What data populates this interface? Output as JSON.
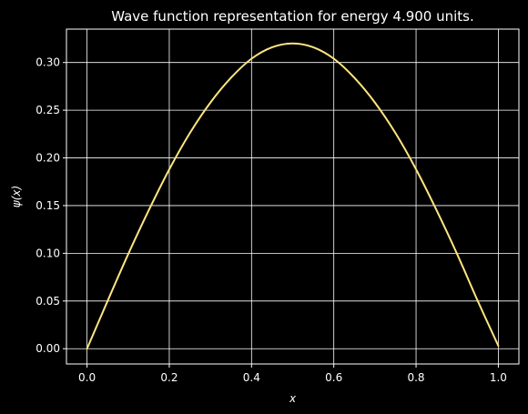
{
  "chart_data": {
    "type": "line",
    "title": "Wave function representation for energy 4.900 units.",
    "xlabel": "x",
    "ylabel": "ψ(x)",
    "xlim": [
      -0.05,
      1.05
    ],
    "ylim": [
      -0.016,
      0.335
    ],
    "xticks": [
      0.0,
      0.2,
      0.4,
      0.6,
      0.8,
      1.0
    ],
    "xtick_labels": [
      "0.0",
      "0.2",
      "0.4",
      "0.6",
      "0.8",
      "1.0"
    ],
    "yticks": [
      0.0,
      0.05,
      0.1,
      0.15,
      0.2,
      0.25,
      0.3
    ],
    "ytick_labels": [
      "0.00",
      "0.05",
      "0.10",
      "0.15",
      "0.20",
      "0.25",
      "0.30"
    ],
    "grid": true,
    "background_color": "#000000",
    "text_color": "#ffffff",
    "grid_color": "#ffffff",
    "series": [
      {
        "color": "#ffe680",
        "x": [
          0.0,
          0.05,
          0.1,
          0.15,
          0.2,
          0.25,
          0.3,
          0.35,
          0.4,
          0.45,
          0.5,
          0.55,
          0.6,
          0.65,
          0.7,
          0.75,
          0.8,
          0.85,
          0.9,
          0.95,
          1.0
        ],
        "y": [
          0.0,
          0.05,
          0.099,
          0.145,
          0.188,
          0.226,
          0.258,
          0.284,
          0.304,
          0.316,
          0.32,
          0.316,
          0.304,
          0.284,
          0.258,
          0.226,
          0.188,
          0.145,
          0.099,
          0.05,
          0.003
        ]
      }
    ]
  }
}
